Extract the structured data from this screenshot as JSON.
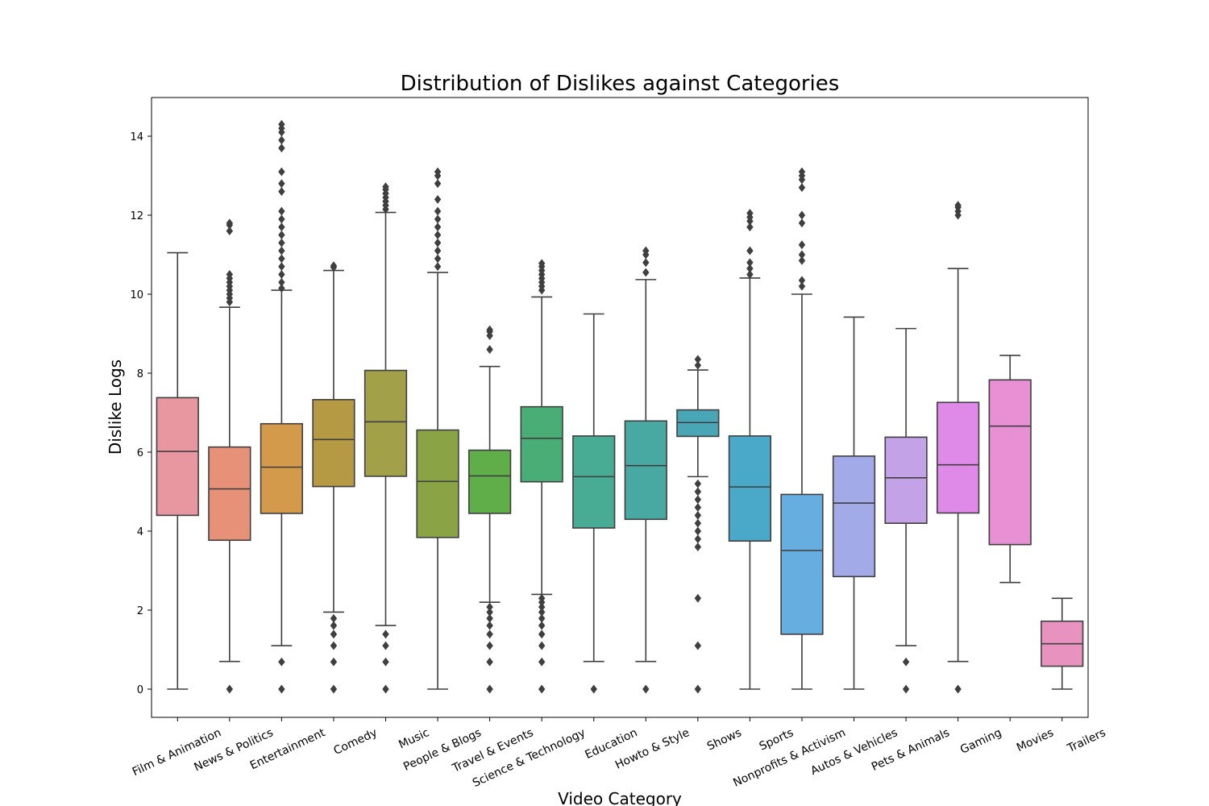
{
  "chart_data": {
    "type": "box",
    "title": "Distribution of Dislikes against Categories",
    "xlabel": "Video Category",
    "ylabel": "Dislike Logs",
    "ylim": [
      -0.7,
      15.0
    ],
    "yticks": [
      0,
      2,
      4,
      6,
      8,
      10,
      12,
      14
    ],
    "grid": false,
    "categories": [
      "Film & Animation",
      "News & Politics",
      "Entertainment",
      "Comedy",
      "Music",
      "People & Blogs",
      "Travel & Events",
      "Science & Technology",
      "Education",
      "Howto & Style",
      "Shows",
      "Sports",
      "Nonprofits & Activism",
      "Autos & Vehicles",
      "Pets & Animals",
      "Gaming",
      "Movies",
      "Trailers"
    ],
    "series": [
      {
        "category": "Film & Animation",
        "color": "#e8969f",
        "whisker_low": 0,
        "q1": 4.4,
        "median": 6.02,
        "q3": 7.38,
        "whisker_high": 11.05,
        "outliers": []
      },
      {
        "category": "News & Politics",
        "color": "#e79278",
        "whisker_low": 0.7,
        "q1": 3.77,
        "median": 5.07,
        "q3": 6.13,
        "whisker_high": 9.67,
        "outliers": [
          0,
          9.8,
          9.9,
          10.0,
          10.1,
          10.2,
          10.3,
          10.4,
          10.5,
          11.6,
          11.75,
          11.8
        ]
      },
      {
        "category": "Entertainment",
        "color": "#d29a4a",
        "whisker_low": 1.1,
        "q1": 4.45,
        "median": 5.62,
        "q3": 6.72,
        "whisker_high": 10.1,
        "outliers": [
          0,
          0.69,
          10.15,
          10.3,
          10.5,
          10.7,
          10.9,
          11.1,
          11.3,
          11.5,
          11.7,
          11.9,
          12.1,
          12.6,
          12.8,
          13.1,
          13.7,
          13.9,
          14.1,
          14.2,
          14.3
        ]
      },
      {
        "category": "Comedy",
        "color": "#b59a43",
        "whisker_low": 1.95,
        "q1": 5.13,
        "median": 6.32,
        "q3": 7.33,
        "whisker_high": 10.6,
        "outliers": [
          0,
          0.69,
          1.1,
          1.39,
          1.61,
          1.79,
          10.68,
          10.72
        ]
      },
      {
        "category": "Music",
        "color": "#a3a04a",
        "whisker_low": 1.61,
        "q1": 5.39,
        "median": 6.77,
        "q3": 8.07,
        "whisker_high": 12.07,
        "outliers": [
          0,
          0.69,
          1.1,
          1.39,
          12.15,
          12.25,
          12.35,
          12.45,
          12.55,
          12.65,
          12.72
        ]
      },
      {
        "category": "People & Blogs",
        "color": "#8aa445",
        "whisker_low": 0,
        "q1": 3.84,
        "median": 5.26,
        "q3": 6.56,
        "whisker_high": 10.55,
        "outliers": [
          10.7,
          10.9,
          11.1,
          11.3,
          11.5,
          11.7,
          11.9,
          12.1,
          12.4,
          12.8,
          13.0,
          13.1
        ]
      },
      {
        "category": "Travel & Events",
        "color": "#5fae4a",
        "whisker_low": 2.2,
        "q1": 4.45,
        "median": 5.4,
        "q3": 6.05,
        "whisker_high": 8.17,
        "outliers": [
          0,
          0.69,
          1.1,
          1.39,
          1.61,
          1.79,
          1.95,
          2.08,
          8.6,
          8.95,
          9.05,
          9.1
        ]
      },
      {
        "category": "Science & Technology",
        "color": "#49ad76",
        "whisker_low": 2.4,
        "q1": 5.25,
        "median": 6.35,
        "q3": 7.15,
        "whisker_high": 9.93,
        "outliers": [
          0,
          0.69,
          1.1,
          1.39,
          1.61,
          1.79,
          1.95,
          2.08,
          2.2,
          2.3,
          10.1,
          10.2,
          10.3,
          10.4,
          10.5,
          10.6,
          10.7,
          10.78
        ]
      },
      {
        "category": "Education",
        "color": "#48ab94",
        "whisker_low": 0.7,
        "q1": 4.08,
        "median": 5.38,
        "q3": 6.41,
        "whisker_high": 9.5,
        "outliers": [
          0
        ]
      },
      {
        "category": "Howto & Style",
        "color": "#48a9a3",
        "whisker_low": 0.7,
        "q1": 4.3,
        "median": 5.66,
        "q3": 6.79,
        "whisker_high": 10.37,
        "outliers": [
          0,
          10.55,
          10.8,
          11.0,
          11.1
        ]
      },
      {
        "category": "Shows",
        "color": "#48a6b5",
        "whisker_low": 5.38,
        "q1": 6.4,
        "median": 6.75,
        "q3": 7.07,
        "whisker_high": 8.08,
        "outliers": [
          0,
          1.1,
          2.3,
          3.6,
          3.8,
          4.0,
          4.2,
          4.4,
          4.6,
          4.8,
          5.0,
          5.2,
          8.2,
          8.35
        ]
      },
      {
        "category": "Sports",
        "color": "#4aa8c8",
        "whisker_low": 0,
        "q1": 3.75,
        "median": 5.12,
        "q3": 6.41,
        "whisker_high": 10.41,
        "outliers": [
          10.5,
          10.65,
          10.8,
          11.1,
          11.7,
          11.85,
          11.95,
          12.05
        ]
      },
      {
        "category": "Nonprofits & Activism",
        "color": "#66ade0",
        "whisker_low": 0,
        "q1": 1.39,
        "median": 3.51,
        "q3": 4.93,
        "whisker_high": 10.0,
        "outliers": [
          10.2,
          10.35,
          10.85,
          11.0,
          11.25,
          11.8,
          12.0,
          12.7,
          12.9,
          13.0,
          13.1
        ]
      },
      {
        "category": "Autos & Vehicles",
        "color": "#a3aae8",
        "whisker_low": 0,
        "q1": 2.85,
        "median": 4.71,
        "q3": 5.9,
        "whisker_high": 9.42,
        "outliers": []
      },
      {
        "category": "Pets & Animals",
        "color": "#c3a2e8",
        "whisker_low": 1.1,
        "q1": 4.2,
        "median": 5.35,
        "q3": 6.38,
        "whisker_high": 9.13,
        "outliers": [
          0,
          0.69
        ]
      },
      {
        "category": "Gaming",
        "color": "#df8ae8",
        "whisker_low": 0.7,
        "q1": 4.46,
        "median": 5.68,
        "q3": 7.26,
        "whisker_high": 10.65,
        "outliers": [
          0,
          12.0,
          12.1,
          12.2,
          12.25
        ]
      },
      {
        "category": "Movies",
        "color": "#e890d4",
        "whisker_low": 2.7,
        "q1": 3.66,
        "median": 6.66,
        "q3": 7.83,
        "whisker_high": 8.45,
        "outliers": []
      },
      {
        "category": "Trailers",
        "color": "#e892bf",
        "whisker_low": 0,
        "q1": 0.58,
        "median": 1.15,
        "q3": 1.72,
        "whisker_high": 2.3,
        "outliers": []
      }
    ]
  }
}
